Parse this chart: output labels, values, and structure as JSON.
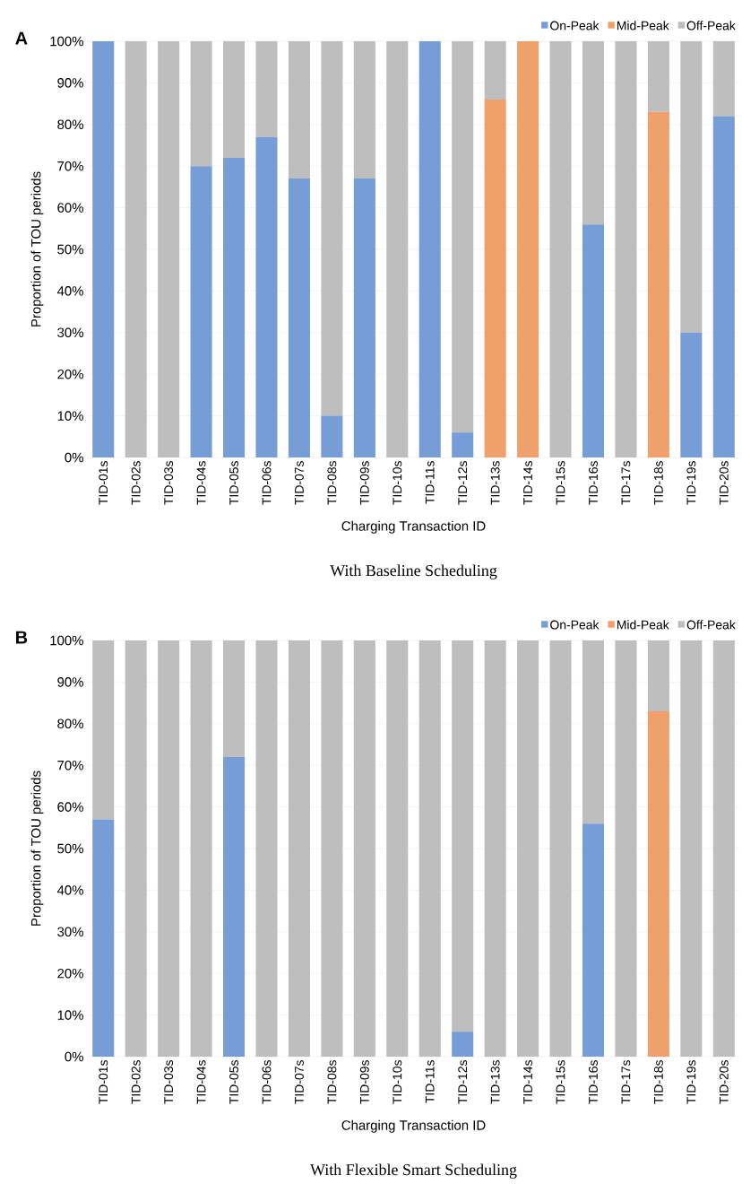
{
  "chart_data": [
    {
      "type": "bar",
      "stacked": true,
      "title": "A",
      "xlabel": "Charging Transaction ID",
      "ylabel": "Proportion of TOU periods",
      "annotations": [
        "With Baseline Scheduling"
      ],
      "categories": [
        "TID-01s",
        "TID-02s",
        "TID-03s",
        "TID-04s",
        "TID-05s",
        "TID-06s",
        "TID-07s",
        "TID-08s",
        "TID-09s",
        "TID-10s",
        "TID-11s",
        "TID-12s",
        "TID-13s",
        "TID-14s",
        "TID-15s",
        "TID-16s",
        "TID-17s",
        "TID-18s",
        "TID-19s",
        "TID-20s"
      ],
      "series": [
        {
          "name": "On-Peak",
          "color": "#779dd6",
          "values": [
            100,
            0,
            0,
            70,
            72,
            77,
            67,
            10,
            67,
            0,
            100,
            6,
            0,
            0,
            0,
            56,
            0,
            0,
            30,
            82
          ]
        },
        {
          "name": "Mid-Peak",
          "color": "#f0a06a",
          "values": [
            0,
            0,
            0,
            0,
            0,
            0,
            0,
            0,
            0,
            0,
            0,
            0,
            86,
            100,
            0,
            0,
            0,
            83,
            0,
            0
          ]
        },
        {
          "name": "Off-Peak",
          "color": "#bebebe",
          "values": [
            0,
            100,
            100,
            30,
            28,
            23,
            33,
            90,
            33,
            100,
            0,
            94,
            14,
            0,
            100,
            44,
            100,
            17,
            70,
            18
          ]
        }
      ],
      "ylim": [
        0,
        100
      ],
      "yticks": [
        {
          "value": 0,
          "label": "0%"
        },
        {
          "value": 10,
          "label": "10%"
        },
        {
          "value": 20,
          "label": "20%"
        },
        {
          "value": 30,
          "label": "30%"
        },
        {
          "value": 40,
          "label": "40%"
        },
        {
          "value": 50,
          "label": "50%"
        },
        {
          "value": 60,
          "label": "60%"
        },
        {
          "value": 70,
          "label": "70%"
        },
        {
          "value": 80,
          "label": "80%"
        },
        {
          "value": 90,
          "label": "90%"
        },
        {
          "value": 100,
          "label": "100%"
        }
      ],
      "grid": "y",
      "legend": "top right"
    },
    {
      "type": "bar",
      "stacked": true,
      "title": "B",
      "xlabel": "Charging Transaction ID",
      "ylabel": "Proportion of TOU periods",
      "annotations": [
        "With Flexible Smart Scheduling"
      ],
      "categories": [
        "TID-01s",
        "TID-02s",
        "TID-03s",
        "TID-04s",
        "TID-05s",
        "TID-06s",
        "TID-07s",
        "TID-08s",
        "TID-09s",
        "TID-10s",
        "TID-11s",
        "TID-12s",
        "TID-13s",
        "TID-14s",
        "TID-15s",
        "TID-16s",
        "TID-17s",
        "TID-18s",
        "TID-19s",
        "TID-20s"
      ],
      "series": [
        {
          "name": "On-Peak",
          "color": "#779dd6",
          "values": [
            57,
            0,
            0,
            0,
            72,
            0,
            0,
            0,
            0,
            0,
            0,
            6,
            0,
            0,
            0,
            56,
            0,
            0,
            0,
            0
          ]
        },
        {
          "name": "Mid-Peak",
          "color": "#f0a06a",
          "values": [
            0,
            0,
            0,
            0,
            0,
            0,
            0,
            0,
            0,
            0,
            0,
            0,
            0,
            0,
            0,
            0,
            0,
            83,
            0,
            0
          ]
        },
        {
          "name": "Off-Peak",
          "color": "#bebebe",
          "values": [
            43,
            100,
            100,
            100,
            28,
            100,
            100,
            100,
            100,
            100,
            100,
            94,
            100,
            100,
            100,
            44,
            100,
            17,
            100,
            100
          ]
        }
      ],
      "ylim": [
        0,
        100
      ],
      "yticks": [
        {
          "value": 0,
          "label": "0%"
        },
        {
          "value": 10,
          "label": "10%"
        },
        {
          "value": 20,
          "label": "20%"
        },
        {
          "value": 30,
          "label": "30%"
        },
        {
          "value": 40,
          "label": "40%"
        },
        {
          "value": 50,
          "label": "50%"
        },
        {
          "value": 60,
          "label": "60%"
        },
        {
          "value": 70,
          "label": "70%"
        },
        {
          "value": 80,
          "label": "80%"
        },
        {
          "value": 90,
          "label": "90%"
        },
        {
          "value": 100,
          "label": "100%"
        }
      ],
      "grid": "y",
      "legend": "top right"
    }
  ]
}
